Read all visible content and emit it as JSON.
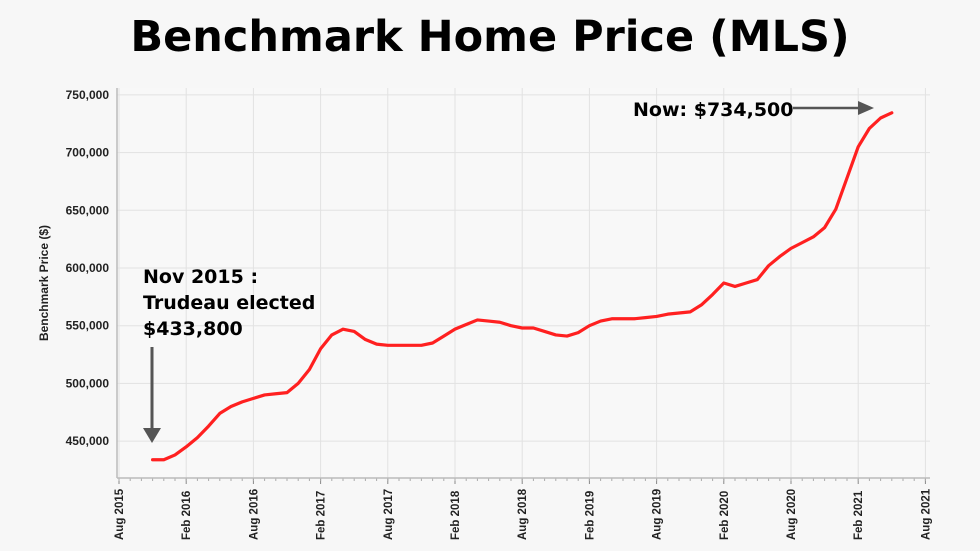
{
  "chart_data": {
    "type": "line",
    "title": "Benchmark Home Price (MLS)",
    "xlabel": "",
    "ylabel": "Benchmark Price ($)",
    "ylim": [
      418000,
      756000
    ],
    "xlim": [
      "2015-08",
      "2021-08"
    ],
    "grid": true,
    "line_color": "#ff2020",
    "y_ticks": [
      450000,
      500000,
      550000,
      600000,
      650000,
      700000,
      750000
    ],
    "y_tick_labels": [
      "450,000",
      "500,000",
      "550,000",
      "600,000",
      "650,000",
      "700,000",
      "750,000"
    ],
    "x_ticks": [
      "2015-08",
      "2016-02",
      "2016-08",
      "2017-02",
      "2017-08",
      "2018-02",
      "2018-08",
      "2019-02",
      "2019-08",
      "2020-02",
      "2020-08",
      "2021-02",
      "2021-08"
    ],
    "x_tick_labels": [
      "Aug 2015",
      "Feb 2016",
      "Aug 2016",
      "Feb 2017",
      "Aug 2017",
      "Feb 2018",
      "Aug 2018",
      "Feb 2019",
      "Aug 2019",
      "Feb 2020",
      "Aug 2020",
      "Feb 2021",
      "Aug 2021"
    ],
    "series": [
      {
        "x": [
          "2015-11",
          "2015-12",
          "2016-01",
          "2016-02",
          "2016-03",
          "2016-04",
          "2016-05",
          "2016-06",
          "2016-07",
          "2016-08",
          "2016-09",
          "2016-10",
          "2016-11",
          "2016-12",
          "2017-01",
          "2017-02",
          "2017-03",
          "2017-04",
          "2017-05",
          "2017-06",
          "2017-07",
          "2017-08",
          "2017-09",
          "2017-10",
          "2017-11",
          "2017-12",
          "2018-01",
          "2018-02",
          "2018-03",
          "2018-04",
          "2018-05",
          "2018-06",
          "2018-07",
          "2018-08",
          "2018-09",
          "2018-10",
          "2018-11",
          "2018-12",
          "2019-01",
          "2019-02",
          "2019-03",
          "2019-04",
          "2019-05",
          "2019-06",
          "2019-07",
          "2019-08",
          "2019-09",
          "2019-10",
          "2019-11",
          "2019-12",
          "2020-01",
          "2020-02",
          "2020-03",
          "2020-04",
          "2020-05",
          "2020-06",
          "2020-07",
          "2020-08",
          "2020-09",
          "2020-10",
          "2020-11",
          "2020-12",
          "2021-01",
          "2021-02",
          "2021-03",
          "2021-04",
          "2021-05"
        ],
        "values": [
          433800,
          433800,
          438000,
          445000,
          453000,
          463000,
          474000,
          480000,
          484000,
          487000,
          490000,
          491000,
          492000,
          500000,
          512000,
          530000,
          542000,
          547000,
          545000,
          538000,
          534000,
          533000,
          533000,
          533000,
          533000,
          535000,
          541000,
          547000,
          551000,
          555000,
          554000,
          553000,
          550000,
          548000,
          548000,
          545000,
          542000,
          541000,
          544000,
          550000,
          554000,
          556000,
          556000,
          556000,
          557000,
          558000,
          560000,
          561000,
          562000,
          568000,
          577000,
          587000,
          584000,
          587000,
          590000,
          602000,
          610000,
          617000,
          622000,
          627000,
          635000,
          651000,
          678000,
          705000,
          721000,
          730000,
          734500
        ]
      }
    ],
    "annotations": [
      {
        "lines": [
          "Nov 2015 :",
          "Trudeau elected",
          "$433,800"
        ],
        "target": "2015-11"
      },
      {
        "text": "Now: $734,500",
        "target": "2021-05"
      }
    ]
  }
}
